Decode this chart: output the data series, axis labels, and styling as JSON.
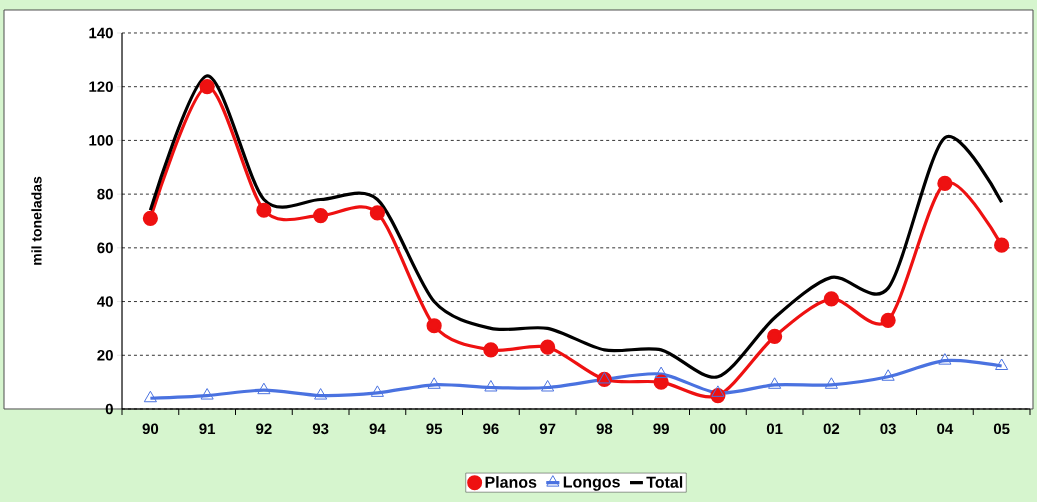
{
  "chart_data": {
    "type": "line",
    "ylabel": "mil toneladas",
    "categories": [
      "90",
      "91",
      "92",
      "93",
      "94",
      "95",
      "96",
      "97",
      "98",
      "99",
      "00",
      "01",
      "02",
      "03",
      "04",
      "05"
    ],
    "series": [
      {
        "name": "Planos",
        "color": "#ee1111",
        "marker": "circle",
        "values": [
          71,
          120,
          74,
          72,
          73,
          31,
          22,
          23,
          11,
          10,
          5,
          27,
          41,
          33,
          84,
          61
        ]
      },
      {
        "name": "Longos",
        "color": "#4a72e0",
        "marker": "triangle",
        "values": [
          4,
          5,
          7,
          5,
          6,
          9,
          8,
          8,
          11,
          13,
          6,
          9,
          9,
          12,
          18,
          16
        ]
      },
      {
        "name": "Total",
        "color": "#000000",
        "marker": "none",
        "values": [
          74,
          124,
          78,
          78,
          78,
          40,
          30,
          30,
          22,
          22,
          12,
          34,
          49,
          45,
          101,
          77
        ]
      }
    ],
    "ylim": [
      0,
      140
    ],
    "yticks": [
      0,
      20,
      40,
      60,
      80,
      100,
      120,
      140
    ],
    "grid": "y",
    "legend": "bottom"
  }
}
